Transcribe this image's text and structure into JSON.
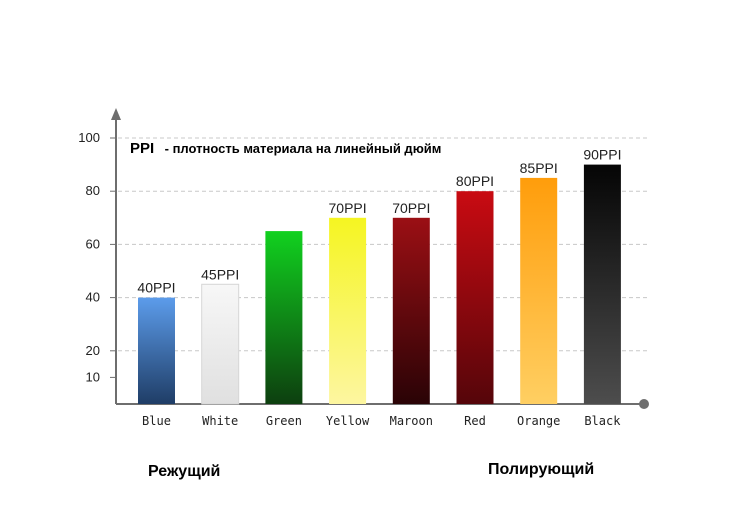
{
  "chart_data": {
    "type": "bar",
    "legend": {
      "abbr": "PPI",
      "text": "- плотность материала на линейный дюйм"
    },
    "categories": [
      "Blue",
      "White",
      "Green",
      "Yellow",
      "Maroon",
      "Red",
      "Orange",
      "Black"
    ],
    "values": [
      40,
      45,
      65,
      70,
      70,
      80,
      85,
      90
    ],
    "value_labels": [
      "40PPI",
      "45PPI",
      "",
      "70PPI",
      "70PPI",
      "80PPI",
      "85PPI",
      "90PPI"
    ],
    "yticks": [
      10,
      20,
      40,
      60,
      80,
      100
    ],
    "ylim": [
      0,
      100
    ],
    "grid": true,
    "groups": [
      "Режущий",
      "Полирующий"
    ],
    "colors": {
      "Blue": [
        "#5c9ceb",
        "#1f3d66"
      ],
      "White": [
        "#f7f7f7",
        "#e0e0e0"
      ],
      "Green": [
        "#11d11f",
        "#0d3f0f"
      ],
      "Yellow": [
        "#f5f521",
        "#fdf6a0"
      ],
      "Maroon": [
        "#9b0f14",
        "#2a0306"
      ],
      "Red": [
        "#c90b12",
        "#55050a"
      ],
      "Orange": [
        "#ff9d0b",
        "#ffcf62"
      ],
      "Black": [
        "#050505",
        "#4d4d4d"
      ]
    }
  }
}
